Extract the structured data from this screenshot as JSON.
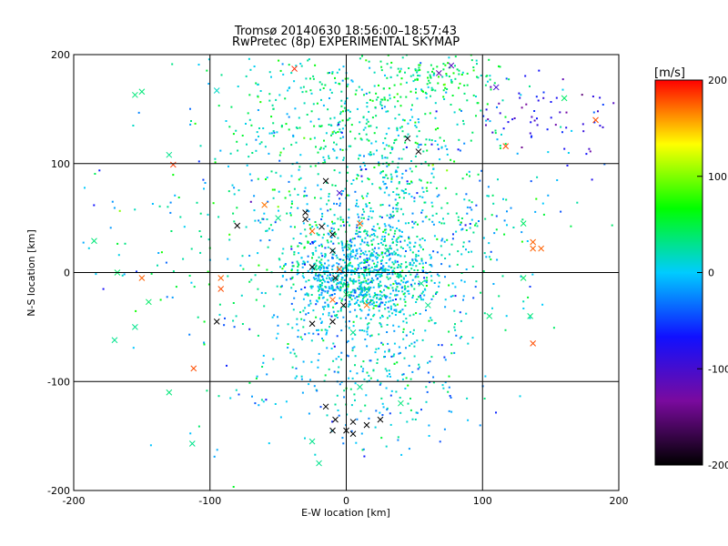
{
  "chart_data": {
    "type": "scatter",
    "title": "Tromsø 20140630 18:56:00–18:57:43",
    "subtitle": "RwPretec (8p) EXPERIMENTAL SKYMAP",
    "xlabel": "E-W location [km]",
    "ylabel": "N-S location [km]",
    "xlim": [
      -200,
      200
    ],
    "ylim": [
      -200,
      200
    ],
    "xticks": [
      "-200",
      "-100",
      "0",
      "100",
      "200"
    ],
    "yticks": [
      "-200",
      "-100",
      "0",
      "100",
      "200"
    ],
    "grid": true,
    "colorbar": {
      "label": "[m/s]",
      "range": [
        -200,
        200
      ],
      "ticks": [
        "200",
        "100",
        "0",
        "-100",
        "-200"
      ],
      "colors": [
        "#000000",
        "#7a0a9e",
        "#1010ff",
        "#00ccff",
        "#00ff00",
        "#ffff00",
        "#ff0000"
      ]
    },
    "markers": {
      "small": "dot",
      "large": "cross"
    },
    "clusters": [
      {
        "x": 10,
        "y": -5,
        "sx": 25,
        "sy": 18,
        "n": 650,
        "v": 5,
        "vs": 25
      },
      {
        "x": 20,
        "y": 30,
        "sx": 40,
        "sy": 45,
        "n": 700,
        "v": 10,
        "vs": 30
      },
      {
        "x": 0,
        "y": 140,
        "sx": 45,
        "sy": 35,
        "n": 450,
        "v": 25,
        "vs": 25
      },
      {
        "x": 70,
        "y": 180,
        "sx": 25,
        "sy": 10,
        "n": 110,
        "v": 45,
        "vs": 20
      },
      {
        "x": 140,
        "y": 145,
        "sx": 25,
        "sy": 15,
        "n": 60,
        "v": -85,
        "vs": 25
      },
      {
        "x": 10,
        "y": -80,
        "sx": 40,
        "sy": 40,
        "n": 350,
        "v": 0,
        "vs": 30
      },
      {
        "x": -80,
        "y": 20,
        "sx": 70,
        "sy": 70,
        "n": 200,
        "v": 10,
        "vs": 40
      },
      {
        "x": 80,
        "y": 60,
        "sx": 60,
        "sy": 60,
        "n": 150,
        "v": 5,
        "vs": 40
      }
    ],
    "crosses": [
      {
        "x": -155,
        "y": 163,
        "v": 35
      },
      {
        "x": -150,
        "y": 166,
        "v": 35
      },
      {
        "x": -130,
        "y": 108,
        "v": 30
      },
      {
        "x": -127,
        "y": 99,
        "v": 185
      },
      {
        "x": -95,
        "y": 167,
        "v": 15
      },
      {
        "x": -185,
        "y": 29,
        "v": 35
      },
      {
        "x": -168,
        "y": 0,
        "v": 40
      },
      {
        "x": -150,
        "y": -5,
        "v": 175
      },
      {
        "x": -145,
        "y": -27,
        "v": 40
      },
      {
        "x": -170,
        "y": -62,
        "v": 30
      },
      {
        "x": -155,
        "y": -50,
        "v": 30
      },
      {
        "x": -130,
        "y": -110,
        "v": 35
      },
      {
        "x": -112,
        "y": -88,
        "v": 180
      },
      {
        "x": -113,
        "y": -157,
        "v": 30
      },
      {
        "x": -95,
        "y": -45,
        "v": -200
      },
      {
        "x": -92,
        "y": -5,
        "v": 175
      },
      {
        "x": -92,
        "y": -15,
        "v": 180
      },
      {
        "x": -80,
        "y": 43,
        "v": -200
      },
      {
        "x": -60,
        "y": 62,
        "v": 170
      },
      {
        "x": -50,
        "y": 50,
        "v": 30
      },
      {
        "x": -38,
        "y": 187,
        "v": 190
      },
      {
        "x": -30,
        "y": 55,
        "v": -200
      },
      {
        "x": -30,
        "y": 49,
        "v": -200
      },
      {
        "x": -25,
        "y": 38,
        "v": 175
      },
      {
        "x": -15,
        "y": 84,
        "v": -200
      },
      {
        "x": -18,
        "y": 42,
        "v": -200
      },
      {
        "x": -10,
        "y": 35,
        "v": -200
      },
      {
        "x": -10,
        "y": 20,
        "v": -200
      },
      {
        "x": -5,
        "y": 3,
        "v": 180
      },
      {
        "x": -25,
        "y": 5,
        "v": -200
      },
      {
        "x": -8,
        "y": -5,
        "v": -200
      },
      {
        "x": 10,
        "y": 45,
        "v": 175
      },
      {
        "x": 30,
        "y": 20,
        "v": 30
      },
      {
        "x": -5,
        "y": 73,
        "v": -100
      },
      {
        "x": -2,
        "y": -30,
        "v": -200
      },
      {
        "x": -10,
        "y": -25,
        "v": 175
      },
      {
        "x": -25,
        "y": -47,
        "v": -200
      },
      {
        "x": -10,
        "y": -45,
        "v": -200
      },
      {
        "x": 5,
        "y": -55,
        "v": 30
      },
      {
        "x": 15,
        "y": -30,
        "v": 170
      },
      {
        "x": 60,
        "y": -30,
        "v": 30
      },
      {
        "x": 53,
        "y": 111,
        "v": -200
      },
      {
        "x": 45,
        "y": 123,
        "v": -200
      },
      {
        "x": 68,
        "y": 183,
        "v": -120
      },
      {
        "x": 77,
        "y": 190,
        "v": -110
      },
      {
        "x": 117,
        "y": 116,
        "v": 180
      },
      {
        "x": 110,
        "y": 170,
        "v": -100
      },
      {
        "x": 160,
        "y": 160,
        "v": 40
      },
      {
        "x": 183,
        "y": 140,
        "v": 180
      },
      {
        "x": 130,
        "y": 45,
        "v": 40
      },
      {
        "x": 137,
        "y": 28,
        "v": 175
      },
      {
        "x": 137,
        "y": 22,
        "v": 175
      },
      {
        "x": 143,
        "y": 22,
        "v": 175
      },
      {
        "x": 137,
        "y": -65,
        "v": 180
      },
      {
        "x": 135,
        "y": -40,
        "v": 35
      },
      {
        "x": 130,
        "y": -5,
        "v": 40
      },
      {
        "x": 105,
        "y": -40,
        "v": 35
      },
      {
        "x": 10,
        "y": -105,
        "v": 30
      },
      {
        "x": -15,
        "y": -123,
        "v": -200
      },
      {
        "x": -8,
        "y": -135,
        "v": -200
      },
      {
        "x": 5,
        "y": -137,
        "v": -200
      },
      {
        "x": 15,
        "y": -140,
        "v": -200
      },
      {
        "x": 25,
        "y": -135,
        "v": -200
      },
      {
        "x": 0,
        "y": -145,
        "v": -200
      },
      {
        "x": 5,
        "y": -148,
        "v": -200
      },
      {
        "x": -10,
        "y": -145,
        "v": -200
      },
      {
        "x": -25,
        "y": -155,
        "v": 30
      },
      {
        "x": -20,
        "y": -175,
        "v": 30
      },
      {
        "x": 40,
        "y": -120,
        "v": 35
      },
      {
        "x": 0,
        "y": -20,
        "v": 40
      },
      {
        "x": 15,
        "y": -15,
        "v": 35
      },
      {
        "x": 55,
        "y": -10,
        "v": 30
      }
    ]
  }
}
